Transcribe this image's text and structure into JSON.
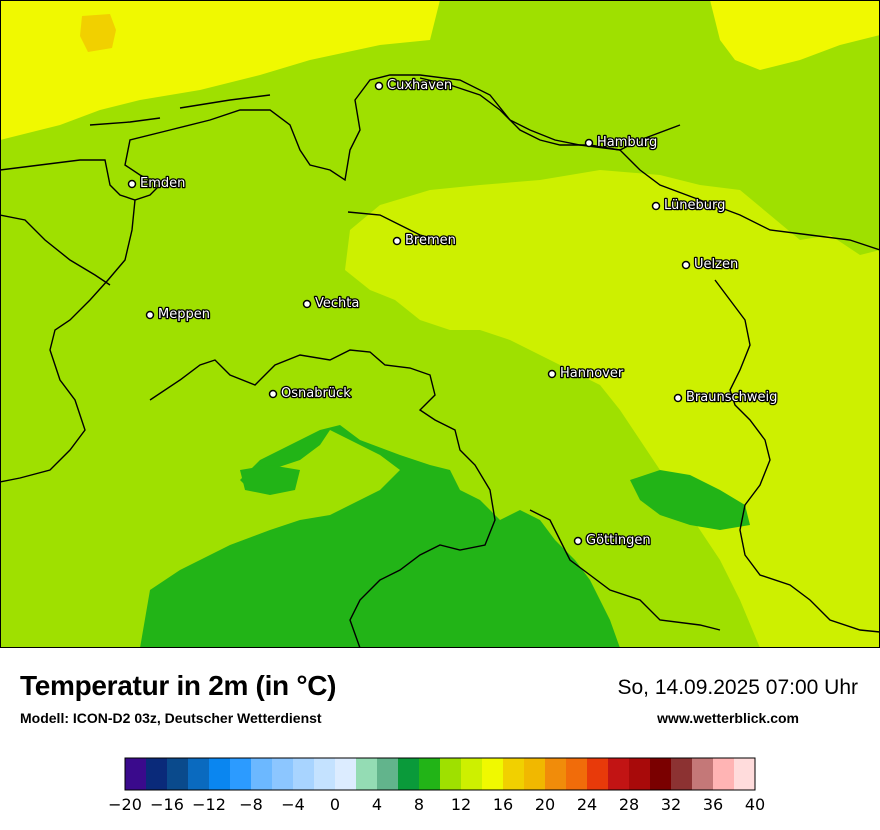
{
  "map": {
    "colors": {
      "lime": "#9fe000",
      "yellow_green": "#cdf000",
      "yellow": "#f0f900",
      "green": "#22b417",
      "dark_gold": "#f1d000",
      "border": "#000000"
    },
    "cities": [
      {
        "name": "Cuxhaven"
      },
      {
        "name": "Hamburg"
      },
      {
        "name": "Emden"
      },
      {
        "name": "Lüneburg"
      },
      {
        "name": "Bremen"
      },
      {
        "name": "Uelzen"
      },
      {
        "name": "Vechta"
      },
      {
        "name": "Meppen"
      },
      {
        "name": "Hannover"
      },
      {
        "name": "Osnabrück"
      },
      {
        "name": "Braunschweig"
      },
      {
        "name": "Göttingen"
      }
    ]
  },
  "footer": {
    "title": "Temperatur in 2m (in °C)",
    "subtitle": "Modell: ICON-D2 03z, Deutscher Wetterdienst",
    "datetime": "So, 14.09.2025 07:00 Uhr",
    "website": "www.wetterblick.com"
  },
  "colorscale": {
    "colors": [
      "#3a0a8c",
      "#0a2a7a",
      "#0a4a8c",
      "#0a6abf",
      "#0a86f0",
      "#2c9bff",
      "#6cb8ff",
      "#8cc6ff",
      "#a8d4ff",
      "#c4e2ff",
      "#dcecff",
      "#94dcb4",
      "#62b48c",
      "#0a9a3a",
      "#22b417",
      "#9fe000",
      "#cdf000",
      "#f0f900",
      "#f1d000",
      "#f1b800",
      "#f18c0a",
      "#f16c0a",
      "#e83a0a",
      "#c21414",
      "#a80a0a",
      "#7a0000",
      "#8c3232",
      "#c47878",
      "#ffb4b4",
      "#ffdcdc"
    ],
    "tick_labels": [
      "−20",
      "−16",
      "−12",
      "−8",
      "−4",
      "0",
      "4",
      "8",
      "12",
      "16",
      "20",
      "24",
      "28",
      "32",
      "36",
      "40"
    ]
  }
}
